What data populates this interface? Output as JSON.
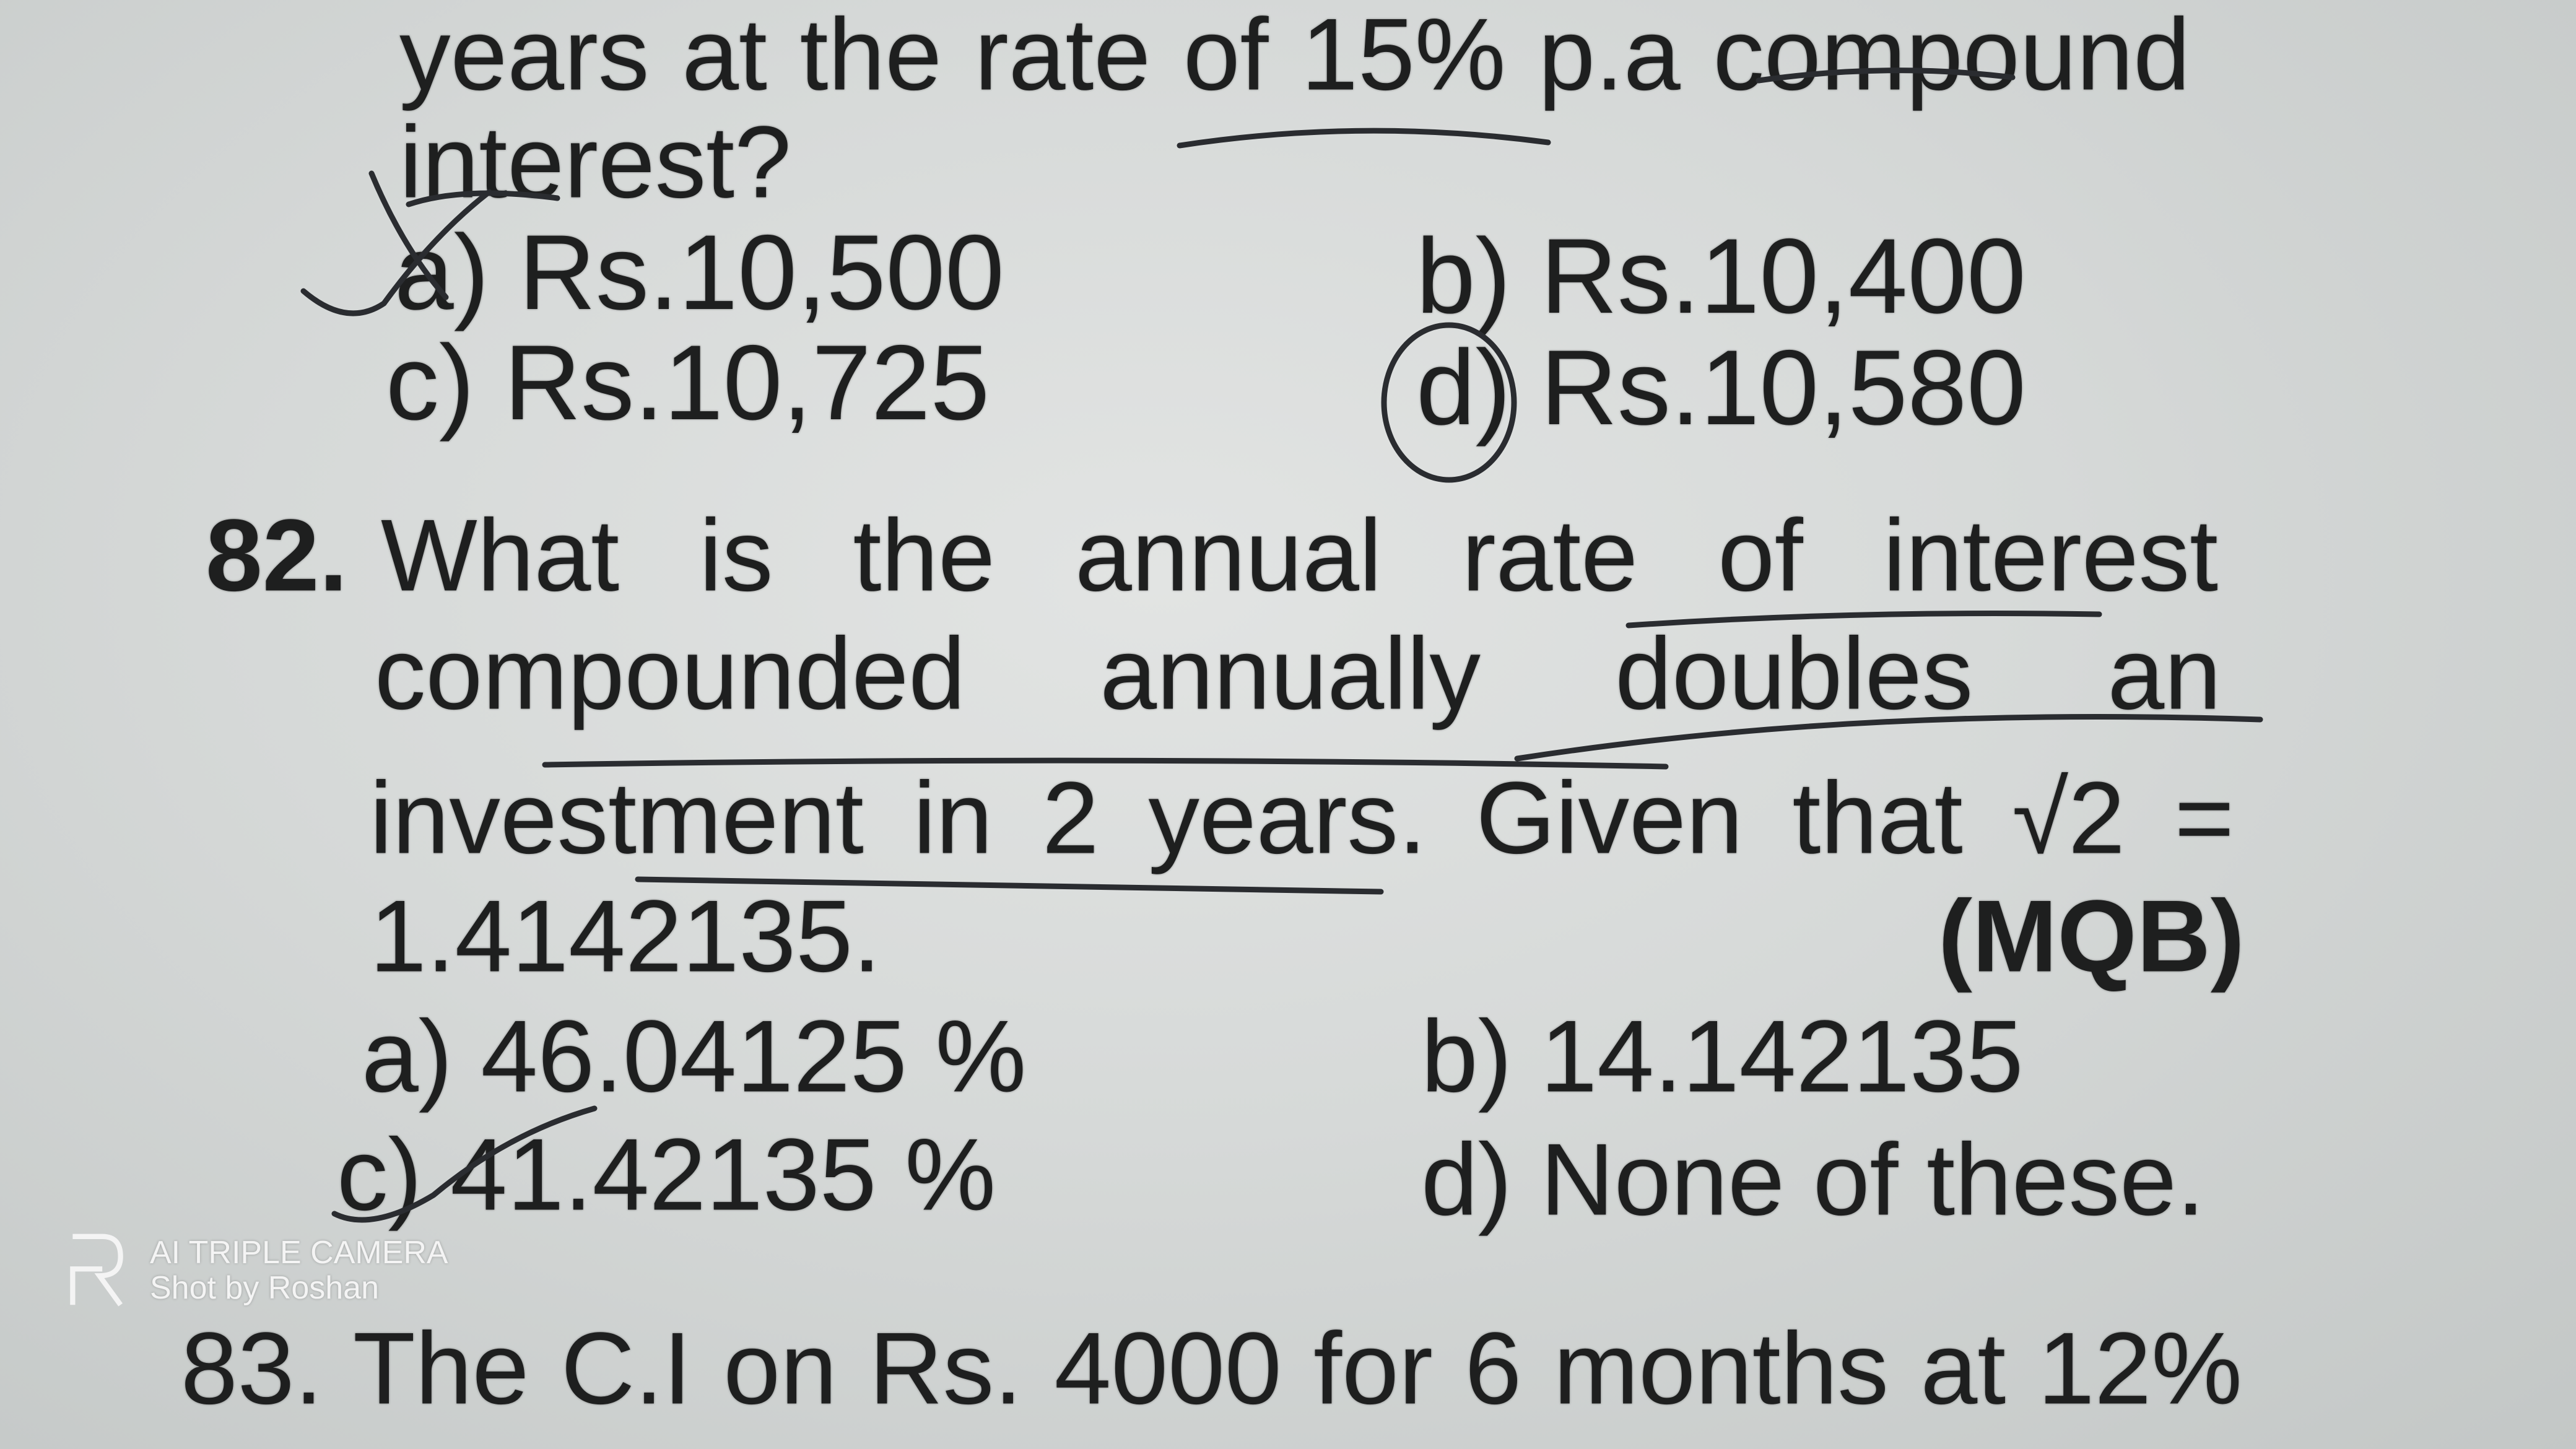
{
  "page": {
    "line1": "years at the rate of 15% p.a compound",
    "line2": "interest?",
    "q81_options": {
      "a": "a) Rs.10,500",
      "b": "b) Rs.10,400",
      "c": "c) Rs.10,725",
      "d": "d) Rs.10,580"
    },
    "q82": {
      "number": "82.",
      "line1": "What is the annual rate of interest",
      "line2": "compounded annually doubles an",
      "line3": "investment in 2 years. Given that √2 =",
      "line4": "1.4142135.",
      "source": "(MQB)",
      "options": {
        "a": "a) 46.04125 %",
        "b": "b) 14.142135",
        "c": "c) 41.42135 %",
        "d": "d) None of these."
      }
    },
    "q83": {
      "line1": "83. The C.I on Rs. 4000 for 6 months at 12%"
    }
  },
  "watermark": {
    "line1": "AI TRIPLE CAMERA",
    "line2": "Shot by Roshan"
  },
  "colors": {
    "paper": "#d9dcdb",
    "ink": "#1e1f1f",
    "pen": "#2a2c30"
  }
}
